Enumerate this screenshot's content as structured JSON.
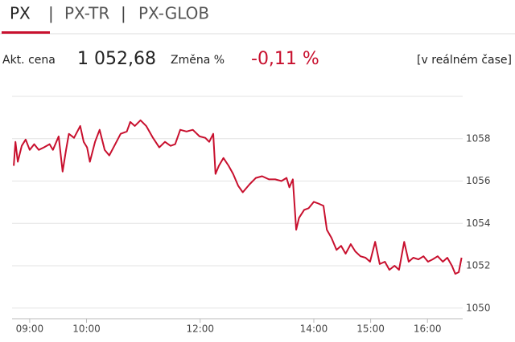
{
  "tabs": [
    "PX",
    "PX-TR",
    "PX-GLOB"
  ],
  "info": {
    "price_label": "Akt. cena",
    "price": "1 052,68",
    "change_label": "Změna %",
    "change": "-0,11 %",
    "realtime": "[v reálném čase]"
  },
  "chart_data": {
    "type": "line",
    "color": "#c8102e",
    "grid": true,
    "xlim": [
      8.69,
      16.62
    ],
    "ylim": [
      1049.5,
      1060
    ],
    "xticks": [
      {
        "value": 9,
        "label": "09:00"
      },
      {
        "value": 10,
        "label": "10:00"
      },
      {
        "value": 12,
        "label": "12:00"
      },
      {
        "value": 14,
        "label": "14:00"
      },
      {
        "value": 15,
        "label": "15:00"
      },
      {
        "value": 16,
        "label": "16:00"
      }
    ],
    "yticks": [
      1050,
      1052,
      1054,
      1056,
      1058
    ],
    "x": [
      8.72,
      8.75,
      8.79,
      8.86,
      8.93,
      9.0,
      9.08,
      9.16,
      9.25,
      9.35,
      9.41,
      9.51,
      9.58,
      9.64,
      9.69,
      9.78,
      9.89,
      9.95,
      10.01,
      10.06,
      10.15,
      10.23,
      10.32,
      10.4,
      10.49,
      10.6,
      10.71,
      10.77,
      10.85,
      10.95,
      11.05,
      11.17,
      11.28,
      11.38,
      11.48,
      11.56,
      11.65,
      11.76,
      11.87,
      11.99,
      12.09,
      12.16,
      12.23,
      12.27,
      12.33,
      12.41,
      12.5,
      12.58,
      12.67,
      12.75,
      12.87,
      12.98,
      13.09,
      13.21,
      13.32,
      13.43,
      13.52,
      13.57,
      13.63,
      13.69,
      13.74,
      13.83,
      13.91,
      14.0,
      14.08,
      14.17,
      14.23,
      14.31,
      14.4,
      14.48,
      14.56,
      14.65,
      14.73,
      14.82,
      14.91,
      14.99,
      15.08,
      15.16,
      15.25,
      15.33,
      15.42,
      15.5,
      15.59,
      15.67,
      15.75,
      15.84,
      15.93,
      16.01,
      16.09,
      16.18,
      16.27,
      16.35,
      16.43,
      16.49,
      16.55,
      16.6
    ],
    "values": [
      1056.72,
      1057.85,
      1056.91,
      1057.66,
      1057.96,
      1057.47,
      1057.74,
      1057.47,
      1057.59,
      1057.74,
      1057.47,
      1058.11,
      1056.45,
      1057.47,
      1058.23,
      1058.04,
      1058.6,
      1057.85,
      1057.59,
      1056.91,
      1057.85,
      1058.42,
      1057.47,
      1057.21,
      1057.66,
      1058.23,
      1058.34,
      1058.79,
      1058.6,
      1058.87,
      1058.6,
      1058.04,
      1057.59,
      1057.85,
      1057.66,
      1057.74,
      1058.42,
      1058.34,
      1058.42,
      1058.11,
      1058.04,
      1057.85,
      1058.23,
      1056.34,
      1056.72,
      1057.09,
      1056.72,
      1056.34,
      1055.77,
      1055.47,
      1055.85,
      1056.15,
      1056.23,
      1056.08,
      1056.08,
      1056.0,
      1056.15,
      1055.7,
      1056.08,
      1053.7,
      1054.26,
      1054.64,
      1054.72,
      1055.02,
      1054.94,
      1054.83,
      1053.7,
      1053.32,
      1052.75,
      1052.94,
      1052.57,
      1053.02,
      1052.68,
      1052.45,
      1052.38,
      1052.19,
      1053.13,
      1052.08,
      1052.19,
      1051.81,
      1052.0,
      1051.81,
      1053.13,
      1052.19,
      1052.38,
      1052.3,
      1052.45,
      1052.19,
      1052.3,
      1052.45,
      1052.19,
      1052.38,
      1052.0,
      1051.62,
      1051.7,
      1052.38
    ]
  }
}
